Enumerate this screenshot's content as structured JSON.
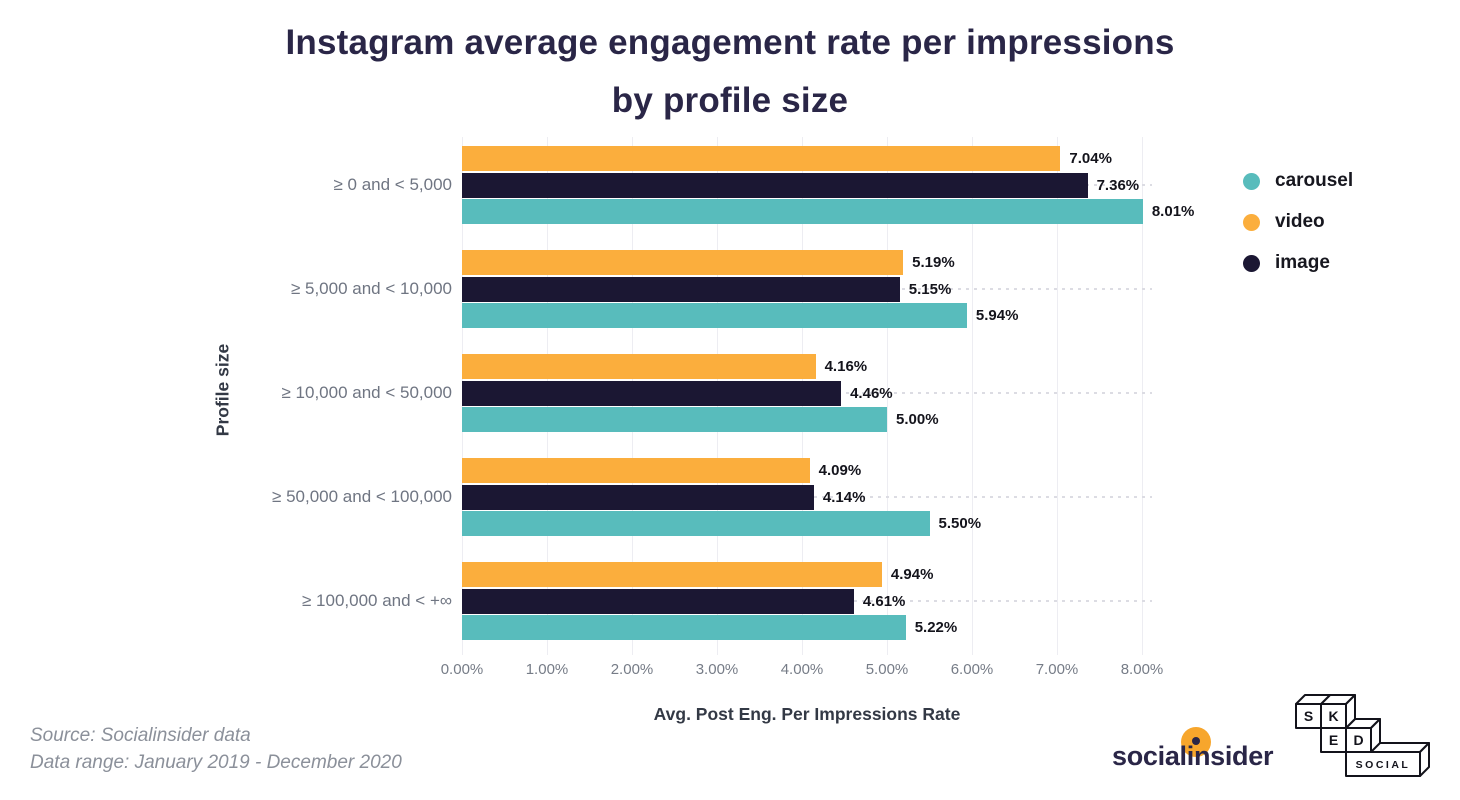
{
  "title": {
    "line1": "Instagram average engagement rate per impressions",
    "line2": "by profile size"
  },
  "chart_data": {
    "type": "bar",
    "orientation": "horizontal",
    "title": "Instagram average engagement rate per impressions by profile size",
    "xlabel": "Avg. Post Eng. Per Impressions Rate",
    "ylabel": "Profile size",
    "xlim": [
      0,
      8.1
    ],
    "grid": true,
    "legend_position": "right",
    "x_ticks": [
      "0.00%",
      "1.00%",
      "2.00%",
      "3.00%",
      "4.00%",
      "5.00%",
      "6.00%",
      "7.00%",
      "8.00%"
    ],
    "categories": [
      "≥ 0 and < 5,000",
      "≥ 5,000 and < 10,000",
      "≥ 10,000 and < 50,000",
      "≥ 50,000 and < 100,000",
      "≥ 100,000 and < +∞"
    ],
    "bar_order_top_to_bottom": [
      "video",
      "image",
      "carousel"
    ],
    "series": [
      {
        "name": "carousel",
        "color": "#58bcbc",
        "values": [
          8.01,
          5.94,
          5.0,
          5.5,
          5.22
        ],
        "labels": [
          "8.01%",
          "5.94%",
          "5.00%",
          "5.50%",
          "5.22%"
        ]
      },
      {
        "name": "video",
        "color": "#fbae3d",
        "values": [
          7.04,
          5.19,
          4.16,
          4.09,
          4.94
        ],
        "labels": [
          "7.04%",
          "5.19%",
          "4.16%",
          "4.09%",
          "4.94%"
        ]
      },
      {
        "name": "image",
        "color": "#1b1733",
        "values": [
          7.36,
          5.15,
          4.46,
          4.14,
          4.61
        ],
        "labels": [
          "7.36%",
          "5.15%",
          "4.46%",
          "4.14%",
          "4.61%"
        ]
      }
    ]
  },
  "footer": {
    "source_line1": "Source: Socialinsider data",
    "source_line2": "Data range: January 2019 - December 2020",
    "socialinsider_logo_text": "socialinsider",
    "sked_logo": {
      "box1": "S",
      "box2": "K",
      "box3": "E",
      "box4": "D",
      "box5": "SOCIAL"
    }
  }
}
